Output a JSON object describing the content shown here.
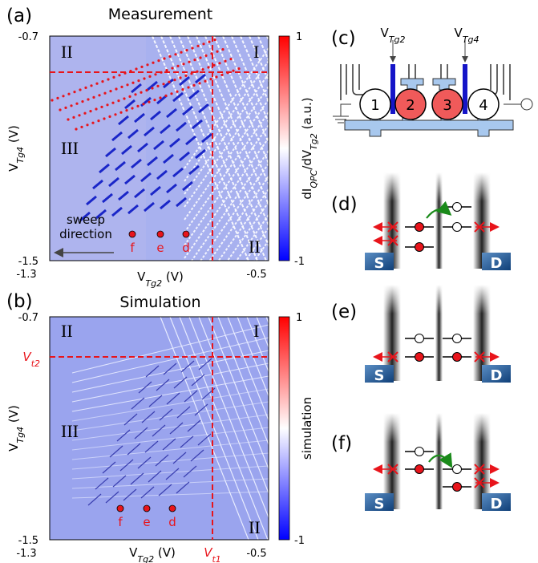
{
  "panel_a": {
    "label": "(a)",
    "title": "Measurement",
    "y_ticks": [
      "-0.7",
      "-1.5"
    ],
    "x_ticks": [
      "-1.3",
      "-0.5"
    ],
    "x_label": {
      "symbol": "V",
      "subscript": "Tg2",
      "unit": " (V)"
    },
    "y_label": {
      "symbol": "V",
      "subscript": "Tg4",
      "unit": " (V)"
    },
    "colorbar": {
      "ticks": [
        "1",
        "-1"
      ],
      "label": [
        "dI",
        "QPC",
        "/dV",
        "Tg2",
        " (a.u.)"
      ]
    },
    "regions": [
      "II",
      "I",
      "III",
      "II"
    ],
    "points": [
      "f",
      "e",
      "d"
    ],
    "annotation": [
      "sweep",
      "direction"
    ]
  },
  "panel_b": {
    "label": "(b)",
    "title": "Simulation",
    "y_ticks": [
      "-0.7",
      "-1.5"
    ],
    "x_ticks": [
      "-1.3",
      "-0.5"
    ],
    "x_label": {
      "symbol": "V",
      "subscript": "Tg2",
      "unit": " (V)"
    },
    "y_label": {
      "symbol": "V",
      "subscript": "Tg4",
      "unit": " (V)"
    },
    "colorbar": {
      "ticks": [
        "1",
        "-1"
      ],
      "label": "simulation"
    },
    "markers": {
      "vt1": {
        "symbol": "V",
        "subscript": "t1"
      },
      "vt2": {
        "symbol": "V",
        "subscript": "t2"
      }
    },
    "regions": [
      "II",
      "I",
      "III",
      "II"
    ],
    "points": [
      "f",
      "e",
      "d"
    ]
  },
  "panel_c": {
    "label": "(c)",
    "gates": [
      {
        "symbol": "V",
        "subscript": "Tg2"
      },
      {
        "symbol": "V",
        "subscript": "Tg4"
      }
    ],
    "dots": [
      "1",
      "2",
      "3",
      "4"
    ]
  },
  "panel_d": {
    "label": "(d)",
    "source": "S",
    "drain": "D"
  },
  "panel_e": {
    "label": "(e)",
    "source": "S",
    "drain": "D"
  },
  "panel_f": {
    "label": "(f)",
    "source": "S",
    "drain": "D"
  }
}
